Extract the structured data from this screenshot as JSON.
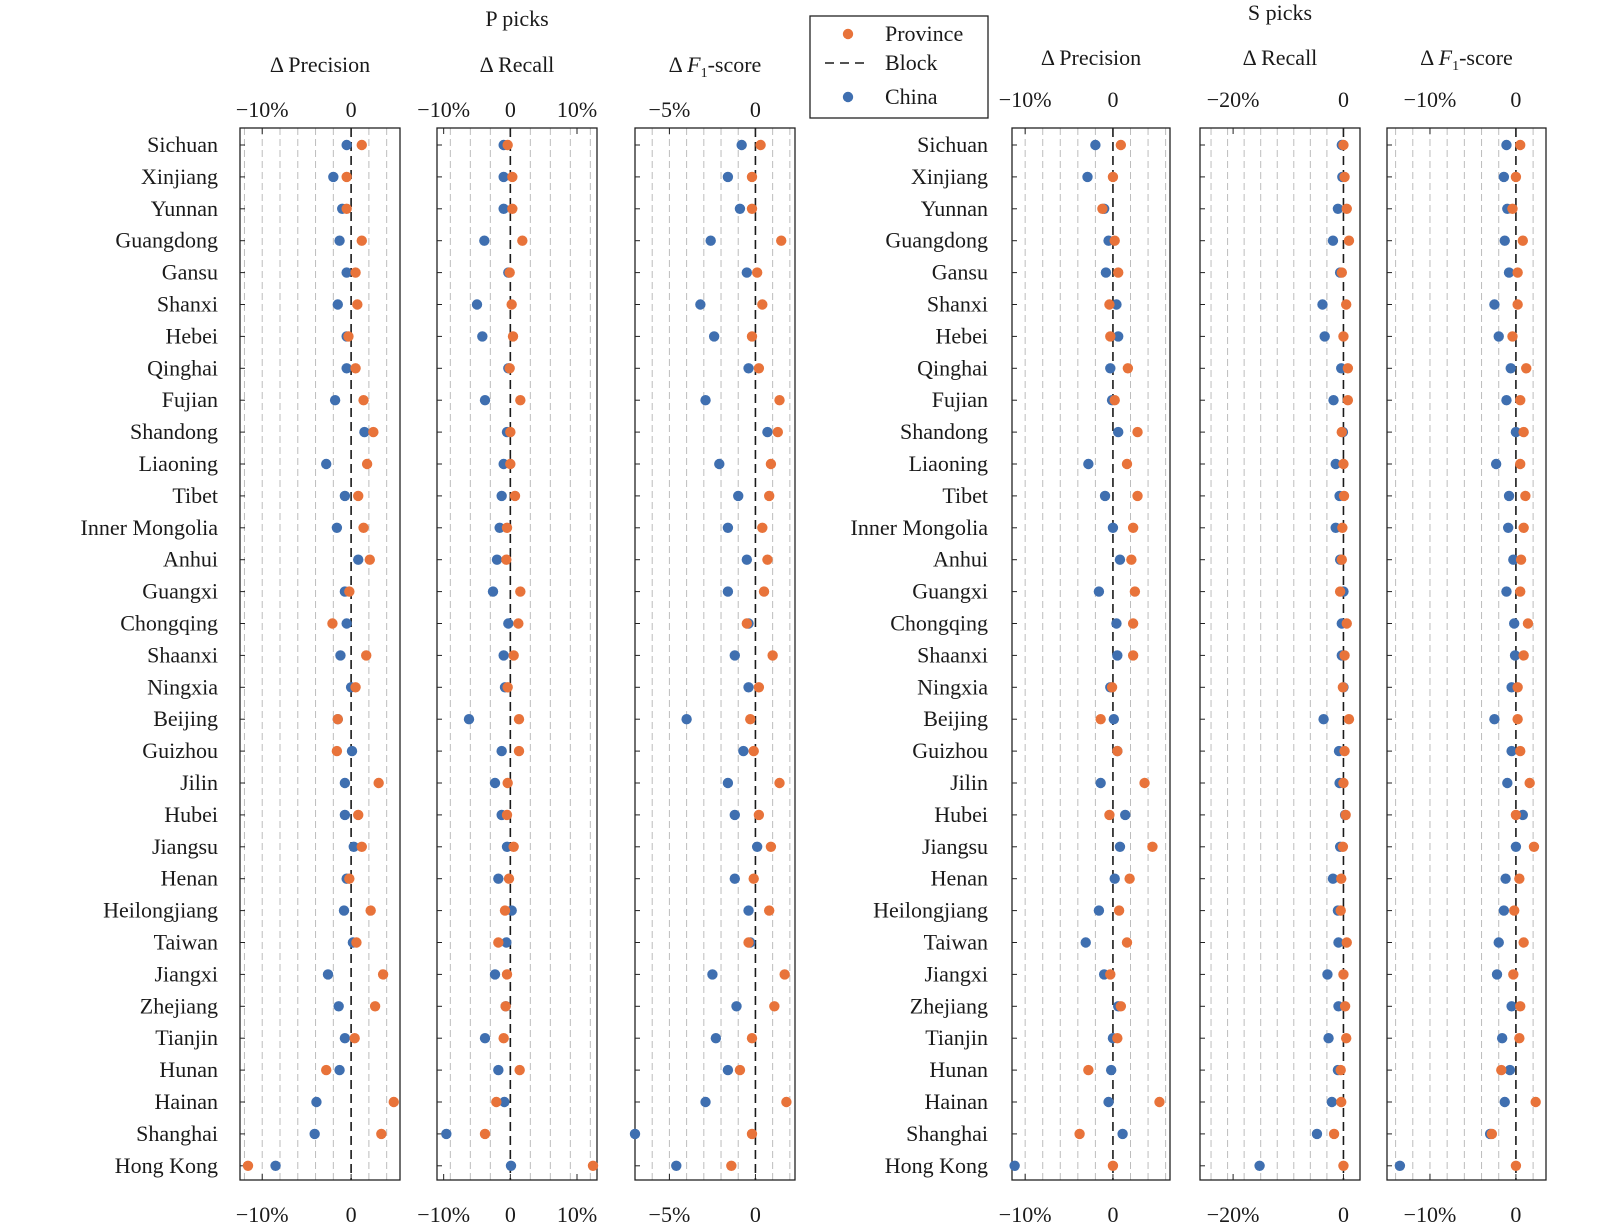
{
  "chart_data": {
    "type": "scatter",
    "legend": {
      "position": "top-center",
      "entries": [
        {
          "key": "province",
          "label": "Province",
          "color": "#E8733A",
          "marker": "dot"
        },
        {
          "key": "block",
          "label": "Block",
          "color": "#1a1a1a",
          "marker": "dashed-line"
        },
        {
          "key": "china",
          "label": "China",
          "color": "#3F6FB0",
          "marker": "dot"
        }
      ]
    },
    "colors": {
      "province": "#E8733A",
      "china": "#3F6FB0",
      "reference_line": "#1a1a1a",
      "grid": "#bdbdbd"
    },
    "grid": true,
    "regions": [
      "Sichuan",
      "Xinjiang",
      "Yunnan",
      "Guangdong",
      "Gansu",
      "Shanxi",
      "Hebei",
      "Qinghai",
      "Fujian",
      "Shandong",
      "Liaoning",
      "Tibet",
      "Inner Mongolia",
      "Anhui",
      "Guangxi",
      "Chongqing",
      "Shaanxi",
      "Ningxia",
      "Beijing",
      "Guizhou",
      "Jilin",
      "Hubei",
      "Jiangsu",
      "Henan",
      "Heilongjiang",
      "Taiwan",
      "Jiangxi",
      "Zhejiang",
      "Tianjin",
      "Hunan",
      "Hainan",
      "Shanghai",
      "Hong Kong"
    ],
    "groups": [
      {
        "title": "P picks",
        "panels": [
          {
            "title": "Δ Precision",
            "italic_var": "",
            "subscript": "",
            "suffix": "",
            "xlim": [
              -12.5,
              5.5
            ],
            "ticks": [
              -10,
              0
            ],
            "tick_labels": [
              "−10%",
              "0"
            ],
            "grid_step": 2,
            "province": [
              1.2,
              -0.5,
              -0.5,
              1.2,
              0.5,
              0.7,
              -0.3,
              0.5,
              1.4,
              2.5,
              1.8,
              0.8,
              1.4,
              2.1,
              -0.2,
              -2.1,
              1.7,
              0.5,
              -1.5,
              -1.6,
              3.1,
              0.8,
              1.2,
              -0.2,
              2.2,
              0.6,
              3.6,
              2.7,
              0.4,
              -2.8,
              4.8,
              3.4,
              -11.6
            ],
            "china": [
              -0.5,
              -2.0,
              -1.0,
              -1.3,
              -0.5,
              -1.5,
              -0.5,
              -0.5,
              -1.8,
              1.5,
              -2.8,
              -0.7,
              -1.6,
              0.8,
              -0.7,
              -0.5,
              -1.2,
              0.0,
              -1.5,
              0.1,
              -0.7,
              -0.7,
              0.3,
              -0.5,
              -0.8,
              0.2,
              -2.6,
              -1.4,
              -0.7,
              -1.3,
              -3.9,
              -4.1,
              -8.5
            ]
          },
          {
            "title": "Δ Recall",
            "italic_var": "",
            "subscript": "",
            "suffix": "",
            "xlim": [
              -11,
              13
            ],
            "ticks": [
              -10,
              0,
              10
            ],
            "tick_labels": [
              "−10%",
              "0",
              "10%"
            ],
            "grid_step": 3,
            "province": [
              -0.4,
              0.3,
              0.3,
              1.8,
              -0.1,
              0.2,
              0.4,
              -0.1,
              1.5,
              0.0,
              0.0,
              0.7,
              -0.5,
              -0.6,
              1.5,
              1.2,
              0.5,
              -0.4,
              1.3,
              1.3,
              -0.4,
              -0.5,
              0.5,
              -0.2,
              -0.8,
              -1.8,
              -0.5,
              -0.7,
              -1.0,
              1.4,
              -2.1,
              -3.8,
              12.4
            ],
            "china": [
              -1.0,
              -1.0,
              -1.0,
              -3.9,
              -0.3,
              -5.0,
              -4.2,
              -0.3,
              -3.8,
              -0.5,
              -1.0,
              -1.3,
              -1.6,
              -2.0,
              -2.6,
              -0.3,
              -1.0,
              -0.8,
              -6.2,
              -1.3,
              -2.3,
              -1.3,
              -0.5,
              -1.8,
              0.2,
              -0.6,
              -2.3,
              -0.7,
              -3.8,
              -1.8,
              -0.9,
              -9.6,
              0.1
            ]
          },
          {
            "title": "Δ ",
            "italic_var": "F",
            "subscript": "1",
            "suffix": "-score",
            "xlim": [
              -7,
              2.3
            ],
            "ticks": [
              -5,
              0
            ],
            "tick_labels": [
              "−5%",
              "0"
            ],
            "grid_step": 1,
            "province": [
              0.3,
              -0.2,
              -0.2,
              1.5,
              0.1,
              0.4,
              -0.2,
              0.2,
              1.4,
              1.3,
              0.9,
              0.8,
              0.4,
              0.7,
              0.5,
              -0.5,
              1.0,
              0.2,
              -0.3,
              -0.1,
              1.4,
              0.2,
              0.9,
              -0.1,
              0.8,
              -0.4,
              1.7,
              1.1,
              -0.2,
              -0.9,
              1.8,
              -0.2,
              -1.4
            ],
            "china": [
              -0.8,
              -1.6,
              -0.9,
              -2.6,
              -0.5,
              -3.2,
              -2.4,
              -0.4,
              -2.9,
              0.7,
              -2.1,
              -1.0,
              -1.6,
              -0.5,
              -1.6,
              -0.4,
              -1.2,
              -0.4,
              -4.0,
              -0.7,
              -1.6,
              -1.2,
              0.1,
              -1.2,
              -0.4,
              -0.3,
              -2.5,
              -1.1,
              -2.3,
              -1.6,
              -2.9,
              -7.0,
              -4.6
            ]
          }
        ]
      },
      {
        "title": "S picks",
        "panels": [
          {
            "title": "Δ Precision",
            "italic_var": "",
            "subscript": "",
            "suffix": "",
            "xlim": [
              -11.5,
              6.5
            ],
            "ticks": [
              -10,
              0
            ],
            "tick_labels": [
              "−10%",
              "0"
            ],
            "grid_step": 2,
            "province": [
              0.9,
              0.0,
              -1.2,
              0.2,
              0.6,
              -0.4,
              -0.3,
              1.7,
              0.2,
              2.8,
              1.6,
              2.8,
              2.3,
              2.1,
              2.5,
              2.3,
              2.3,
              -0.1,
              -1.4,
              0.5,
              3.6,
              -0.4,
              4.5,
              1.9,
              0.7,
              1.6,
              -0.3,
              0.9,
              0.5,
              -2.8,
              5.3,
              -3.8,
              0.0
            ],
            "china": [
              -2.0,
              -2.9,
              -1.0,
              -0.5,
              -0.8,
              0.4,
              0.6,
              -0.3,
              -0.1,
              0.6,
              -2.8,
              -0.9,
              0.0,
              0.8,
              -1.6,
              0.4,
              0.5,
              -0.3,
              0.1,
              0.5,
              -1.4,
              1.4,
              0.8,
              0.2,
              -1.6,
              -3.1,
              -1.0,
              0.6,
              0.0,
              -0.2,
              -0.5,
              1.1,
              -11.2
            ]
          },
          {
            "title": "Δ Recall",
            "italic_var": "",
            "subscript": "",
            "suffix": "",
            "xlim": [
              -26,
              3
            ],
            "ticks": [
              -20,
              0
            ],
            "tick_labels": [
              "−20%",
              "0"
            ],
            "grid_step": 3,
            "province": [
              0.0,
              0.2,
              0.6,
              1.0,
              -0.3,
              0.5,
              0.0,
              0.8,
              0.8,
              -0.3,
              0.0,
              0.1,
              -0.2,
              -0.3,
              -0.6,
              0.6,
              0.2,
              -0.1,
              1.0,
              0.2,
              0.0,
              0.4,
              -0.1,
              -0.4,
              -0.5,
              0.6,
              0.0,
              0.3,
              0.5,
              -0.5,
              -0.4,
              -1.7,
              0.0
            ],
            "china": [
              -0.3,
              -0.2,
              -1.0,
              -1.9,
              -0.6,
              -3.8,
              -3.4,
              -0.4,
              -1.8,
              -0.1,
              -1.4,
              -0.7,
              -1.4,
              -0.6,
              0.0,
              -0.3,
              -0.3,
              0.0,
              -3.6,
              -0.8,
              -0.7,
              0.3,
              -0.6,
              -1.9,
              -1.0,
              -0.9,
              -2.9,
              -0.9,
              -2.7,
              -1.0,
              -2.1,
              -4.8,
              -15.2
            ]
          },
          {
            "title": "Δ ",
            "italic_var": "F",
            "subscript": "1",
            "suffix": "-score",
            "xlim": [
              -15,
              3.5
            ],
            "ticks": [
              -10,
              0
            ],
            "tick_labels": [
              "−10%",
              "0"
            ],
            "grid_step": 2,
            "province": [
              0.5,
              0.0,
              -0.4,
              0.8,
              0.2,
              0.2,
              -0.4,
              1.2,
              0.5,
              0.9,
              0.5,
              1.1,
              0.9,
              0.6,
              0.5,
              1.4,
              0.9,
              0.2,
              0.2,
              0.5,
              1.6,
              0.0,
              2.1,
              0.4,
              -0.2,
              0.9,
              -0.3,
              0.5,
              0.4,
              -1.7,
              2.3,
              -2.8,
              0.0
            ],
            "china": [
              -1.1,
              -1.4,
              -1.0,
              -1.3,
              -0.8,
              -2.5,
              -2.0,
              -0.6,
              -1.1,
              0.0,
              -2.3,
              -0.8,
              -0.9,
              -0.3,
              -1.1,
              -0.2,
              -0.1,
              -0.5,
              -2.5,
              -0.5,
              -1.0,
              0.8,
              0.0,
              -1.2,
              -1.4,
              -2.0,
              -2.2,
              -0.5,
              -1.6,
              -0.7,
              -1.3,
              -3.0,
              -13.5
            ]
          }
        ]
      }
    ]
  }
}
